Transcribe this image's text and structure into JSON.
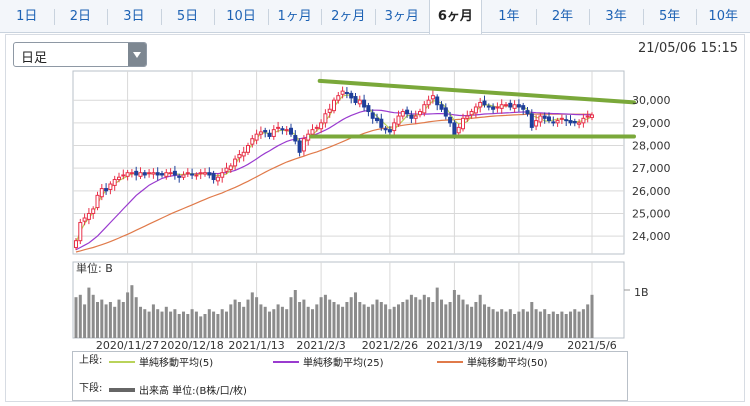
{
  "tabs": [
    {
      "label": "1日",
      "active": false
    },
    {
      "label": "2日",
      "active": false
    },
    {
      "label": "3日",
      "active": false
    },
    {
      "label": "5日",
      "active": false
    },
    {
      "label": "10日",
      "active": false
    },
    {
      "label": "1ヶ月",
      "active": false
    },
    {
      "label": "2ヶ月",
      "active": false
    },
    {
      "label": "3ヶ月",
      "active": false
    },
    {
      "label": "6ヶ月",
      "active": true
    },
    {
      "label": "1年",
      "active": false
    },
    {
      "label": "2年",
      "active": false
    },
    {
      "label": "3年",
      "active": false
    },
    {
      "label": "5年",
      "active": false
    },
    {
      "label": "10年",
      "active": false
    }
  ],
  "period_select": {
    "value": "日足"
  },
  "timestamp": "21/05/06 15:15",
  "colors": {
    "up": "#e8314a",
    "down": "#1f3f9a",
    "ma5": "#b9d35a",
    "ma25": "#9a3bcf",
    "ma50": "#e07a4a",
    "trend": "#7aa83a",
    "volume": "#8c8c8c",
    "grid": "#d9d9d9"
  },
  "chart_data": {
    "type": "candlestick",
    "ylim": [
      23300,
      31200
    ],
    "yticks": [
      "24,000",
      "25,000",
      "26,000",
      "27,000",
      "28,000",
      "29,000",
      "30,000"
    ],
    "ytick_values": [
      24000,
      25000,
      26000,
      27000,
      28000,
      29000,
      30000
    ],
    "xticks": [
      "2020/11/27",
      "2020/12/18",
      "2021/1/13",
      "2021/2/3",
      "2021/2/26",
      "2021/3/19",
      "2021/4/9",
      "2021/5/6"
    ],
    "xtick_index": [
      12,
      27,
      42,
      57,
      73,
      88,
      103,
      120
    ],
    "n": 121,
    "close": [
      23800,
      24600,
      24800,
      25000,
      25200,
      25800,
      26100,
      26000,
      26300,
      26500,
      26600,
      26700,
      26800,
      26800,
      26700,
      26800,
      26700,
      26800,
      26800,
      26700,
      26700,
      26800,
      26800,
      26700,
      26600,
      26700,
      26800,
      26700,
      26700,
      26800,
      26800,
      26700,
      26500,
      26600,
      26800,
      27000,
      27100,
      27400,
      27600,
      27700,
      28000,
      28300,
      28500,
      28600,
      28600,
      28400,
      28700,
      28800,
      28700,
      28700,
      28500,
      28200,
      27700,
      28300,
      28500,
      28700,
      28800,
      29000,
      29400,
      29600,
      30000,
      30200,
      30400,
      30300,
      30100,
      29900,
      30000,
      29700,
      29500,
      29200,
      29100,
      28800,
      28700,
      28600,
      29000,
      29300,
      29500,
      29400,
      29200,
      29300,
      29500,
      29800,
      30000,
      30200,
      29800,
      29600,
      29300,
      29000,
      28500,
      28800,
      29200,
      29300,
      29500,
      29700,
      29900,
      29800,
      29700,
      29600,
      29700,
      29800,
      29800,
      29700,
      29800,
      29700,
      29600,
      29400,
      28800,
      29100,
      29300,
      29200,
      29100,
      29000,
      29100,
      29200,
      29100,
      29000,
      29000,
      29000,
      29200,
      29300,
      29350
    ],
    "ma5_values": [
      23700,
      24200,
      24550,
      24800,
      25050,
      25400,
      25800,
      26000,
      26150,
      26300,
      26450,
      26550,
      26650,
      26750,
      26750,
      26750,
      26750,
      26750,
      26760,
      26760,
      26740,
      26750,
      26770,
      26770,
      26720,
      26720,
      26760,
      26760,
      26720,
      26740,
      26770,
      26760,
      26680,
      26670,
      26700,
      26740,
      26920,
      27160,
      27460,
      27600,
      27800,
      28060,
      28320,
      28530,
      28560,
      28520,
      28560,
      28640,
      28680,
      28660,
      28600,
      28480,
      28160,
      28160,
      28240,
      28460,
      28660,
      28820,
      29080,
      29330,
      29700,
      29960,
      30180,
      30230,
      30220,
      30100,
      30000,
      29860,
      29660,
      29460,
      29290,
      29100,
      28920,
      28740,
      28700,
      28900,
      29100,
      29320,
      29330,
      29330,
      29400,
      29560,
      29780,
      29970,
      29970,
      29860,
      29690,
      29400,
      29100,
      28960,
      28980,
      29060,
      29300,
      29500,
      29720,
      29790,
      29790,
      29740,
      29700,
      29720,
      29750,
      29740,
      29750,
      29740,
      29700,
      29600,
      29330,
      29250,
      29200,
      29080,
      29080,
      29120,
      29170,
      29160,
      29120,
      29080,
      29040,
      29060,
      29100,
      29180,
      29270
    ],
    "ma25_values": [
      23400,
      23500,
      23600,
      23700,
      23850,
      24000,
      24200,
      24400,
      24600,
      24800,
      25000,
      25200,
      25400,
      25600,
      25800,
      25950,
      26100,
      26250,
      26350,
      26450,
      26550,
      26600,
      26650,
      26680,
      26700,
      26720,
      26740,
      26750,
      26760,
      26770,
      26780,
      26780,
      26770,
      26760,
      26780,
      26810,
      26850,
      26900,
      26980,
      27070,
      27170,
      27290,
      27410,
      27540,
      27660,
      27760,
      27880,
      27990,
      28090,
      28180,
      28240,
      28280,
      28300,
      28330,
      28380,
      28440,
      28510,
      28590,
      28680,
      28780,
      28900,
      29020,
      29140,
      29240,
      29330,
      29400,
      29470,
      29520,
      29550,
      29560,
      29560,
      29550,
      29520,
      29480,
      29450,
      29440,
      29430,
      29420,
      29400,
      29390,
      29380,
      29380,
      29390,
      29400,
      29410,
      29410,
      29400,
      29380,
      29350,
      29330,
      29320,
      29320,
      29330,
      29350,
      29370,
      29390,
      29400,
      29410,
      29420,
      29430,
      29440,
      29450,
      29460,
      29470,
      29480,
      29480,
      29460,
      29450,
      29440,
      29430,
      29420,
      29410,
      29410,
      29400,
      29390,
      29380,
      29370,
      29360,
      29360,
      29360,
      29360
    ],
    "ma50_values": [
      23300,
      23350,
      23400,
      23450,
      23500,
      23560,
      23620,
      23690,
      23760,
      23840,
      23920,
      24000,
      24080,
      24170,
      24260,
      24350,
      24440,
      24530,
      24620,
      24710,
      24800,
      24890,
      24980,
      25060,
      25140,
      25220,
      25300,
      25380,
      25460,
      25540,
      25620,
      25700,
      25770,
      25840,
      25910,
      25990,
      26070,
      26150,
      26240,
      26330,
      26420,
      26520,
      26620,
      26720,
      26820,
      26920,
      27010,
      27100,
      27190,
      27270,
      27340,
      27410,
      27470,
      27530,
      27600,
      27660,
      27720,
      27790,
      27860,
      27930,
      28010,
      28090,
      28170,
      28250,
      28330,
      28400,
      28470,
      28540,
      28600,
      28660,
      28700,
      28740,
      28770,
      28800,
      28830,
      28860,
      28890,
      28920,
      28940,
      28960,
      28990,
      29010,
      29040,
      29070,
      29090,
      29110,
      29120,
      29130,
      29140,
      29150,
      29160,
      29180,
      29200,
      29220,
      29240,
      29260,
      29280,
      29300,
      29310,
      29320,
      29330,
      29340,
      29350,
      29360,
      29370,
      29380,
      29380,
      29380,
      29380,
      29380,
      29380,
      29380,
      29380,
      29380,
      29380,
      29380,
      29380,
      29380,
      29380,
      29380,
      29380
    ],
    "volume_scale_label": "1B",
    "volume_values": [
      0.85,
      0.9,
      0.7,
      1.05,
      0.9,
      0.75,
      0.8,
      0.7,
      0.75,
      0.65,
      0.8,
      0.75,
      0.95,
      1.1,
      0.85,
      0.65,
      0.6,
      0.55,
      0.7,
      0.6,
      0.55,
      0.65,
      0.55,
      0.6,
      0.5,
      0.55,
      0.5,
      0.6,
      0.55,
      0.45,
      0.5,
      0.6,
      0.55,
      0.5,
      0.6,
      0.55,
      0.7,
      0.8,
      0.75,
      0.65,
      0.8,
      0.95,
      0.85,
      0.7,
      0.65,
      0.55,
      0.6,
      0.7,
      0.65,
      0.6,
      0.85,
      1.0,
      0.75,
      0.8,
      0.65,
      0.6,
      0.7,
      0.85,
      0.9,
      0.8,
      0.75,
      0.7,
      0.65,
      0.75,
      0.85,
      0.95,
      0.75,
      0.7,
      0.65,
      0.7,
      0.8,
      0.75,
      0.7,
      0.6,
      0.65,
      0.7,
      0.75,
      0.8,
      0.9,
      0.85,
      0.8,
      0.9,
      0.85,
      0.75,
      1.05,
      0.8,
      0.7,
      0.75,
      1.0,
      0.9,
      0.8,
      0.7,
      0.65,
      0.75,
      0.9,
      0.7,
      0.65,
      0.6,
      0.55,
      0.6,
      0.55,
      0.6,
      0.5,
      0.55,
      0.6,
      0.55,
      0.75,
      0.6,
      0.55,
      0.6,
      0.5,
      0.55,
      0.5,
      0.55,
      0.5,
      0.55,
      0.6,
      0.55,
      0.6,
      0.7,
      0.9
    ],
    "trend_lines": [
      {
        "from": {
          "index": 59,
          "value": 30850
        },
        "to": {
          "index": 120,
          "value": 29550
        }
      },
      {
        "from": {
          "index": 57,
          "value": 28400
        },
        "to": {
          "index": 120,
          "value": 28400
        }
      }
    ]
  },
  "legend": {
    "upper_label": "上段:",
    "lower_label": "下段:",
    "ma5": "単純移動平均(5)",
    "ma25": "単純移動平均(25)",
    "ma50": "単純移動平均(50)",
    "volume": "出来高 単位:(B株/口/枚)"
  },
  "volume_unit_label": "単位: B"
}
